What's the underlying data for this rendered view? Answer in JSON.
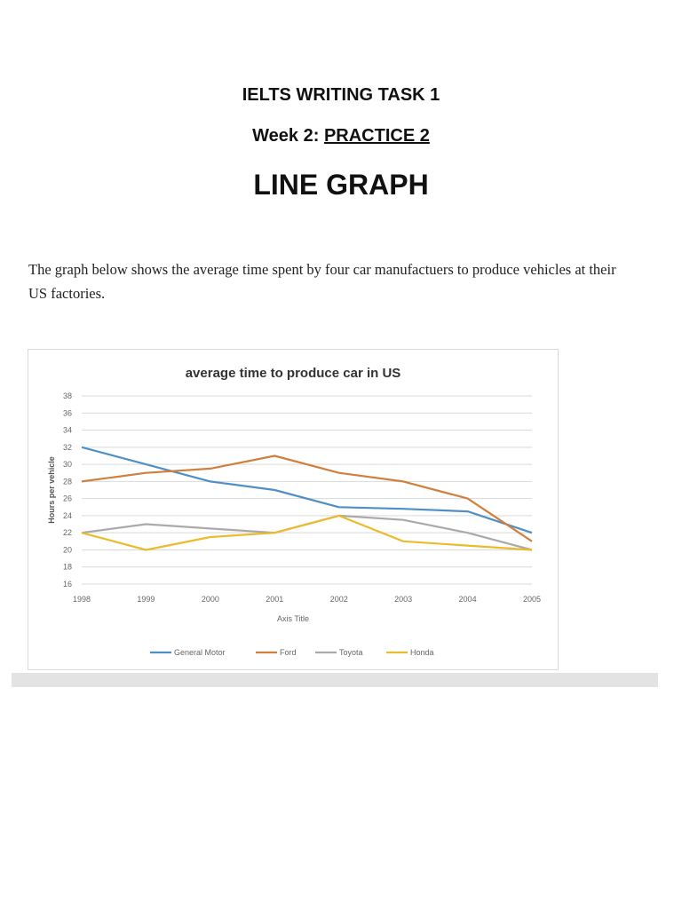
{
  "document": {
    "title": "IELTS WRITING TASK 1",
    "subtitle_prefix": "Week 2: ",
    "subtitle_underlined": "PRACTICE 2",
    "heading": "LINE GRAPH",
    "prompt": "The graph below shows the average time spent by four car manufactuers to produce vehicles at their US factories."
  },
  "colors": {
    "General Motor": "#4f8fc5",
    "Ford": "#d17f3c",
    "Toyota": "#aaaaaa",
    "Honda": "#ebbb2c",
    "grid": "#d9d9d9"
  },
  "chart_data": {
    "type": "line",
    "title": "average time to produce car in US",
    "xlabel": "Axis Title",
    "ylabel": "Hours per vehicle",
    "categories": [
      "1998",
      "1999",
      "2000",
      "2001",
      "2002",
      "2003",
      "2004",
      "2005"
    ],
    "ylim": [
      16,
      38
    ],
    "yticks": [
      16,
      18,
      20,
      22,
      24,
      26,
      28,
      30,
      32,
      34,
      36,
      38
    ],
    "grid": true,
    "legend_position": "bottom",
    "series": [
      {
        "name": "General Motor",
        "values": [
          32,
          30,
          28,
          27,
          25,
          24.8,
          24.5,
          22
        ]
      },
      {
        "name": "Ford",
        "values": [
          28,
          29,
          29.5,
          31,
          29,
          28,
          26,
          21
        ]
      },
      {
        "name": "Toyota",
        "values": [
          22,
          23,
          22.5,
          22,
          24,
          23.5,
          22,
          20
        ]
      },
      {
        "name": "Honda",
        "values": [
          22,
          20,
          21.5,
          22,
          24,
          21,
          20.5,
          20
        ]
      }
    ]
  }
}
